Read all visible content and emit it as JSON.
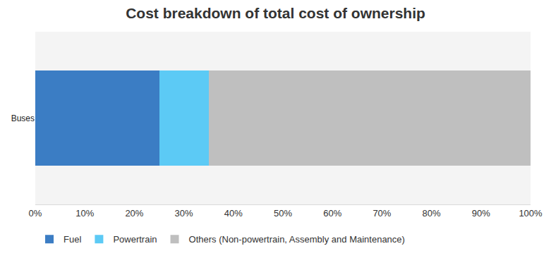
{
  "chart_data": {
    "type": "bar",
    "title": "Cost breakdown of total cost of ownership",
    "orientation": "horizontal",
    "stacked": true,
    "grid": false,
    "legend": "bottom",
    "categories": [
      "Buses"
    ],
    "series": [
      {
        "name": "Fuel",
        "color": "#3b7dc4",
        "values": [
          25
        ]
      },
      {
        "name": "Powertrain",
        "color": "#5ccaf5",
        "values": [
          10
        ]
      },
      {
        "name": "Others (Non-powertrain, Assembly and Maintenance)",
        "color": "#bfbfbf",
        "values": [
          65
        ]
      }
    ],
    "xlim": [
      0,
      100
    ],
    "xticks": [
      {
        "value": 0,
        "label": "0%"
      },
      {
        "value": 10,
        "label": "10%"
      },
      {
        "value": 20,
        "label": "20%"
      },
      {
        "value": 30,
        "label": "30%"
      },
      {
        "value": 40,
        "label": "40%"
      },
      {
        "value": 50,
        "label": "50%"
      },
      {
        "value": 60,
        "label": "60%"
      },
      {
        "value": 70,
        "label": "70%"
      },
      {
        "value": 80,
        "label": "80%"
      },
      {
        "value": 90,
        "label": "90%"
      },
      {
        "value": 100,
        "label": "100%"
      }
    ]
  }
}
